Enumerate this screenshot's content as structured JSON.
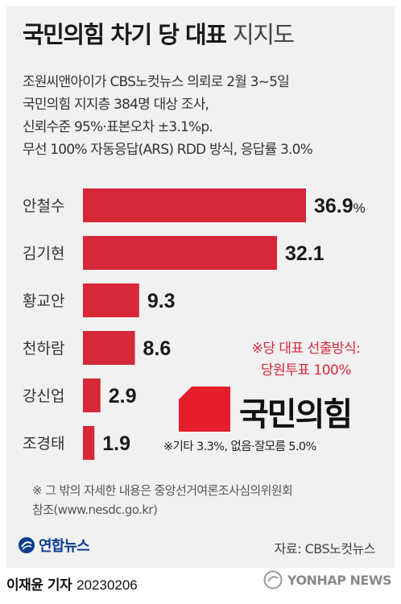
{
  "title": {
    "main": "국민의힘 차기 당 대표",
    "light": "지지도"
  },
  "description": [
    "조원씨앤아이가 CBS노컷뉴스 의뢰로 2월 3~5일",
    "국민의힘 지지층 384명 대상 조사,",
    "신뢰수준 95%·표본오차 ±3.1%p.",
    "무선 100% 자동응답(ARS) RDD 방식, 응답률 3.0%"
  ],
  "chart_data": {
    "type": "bar",
    "orientation": "horizontal",
    "categories": [
      "안철수",
      "김기현",
      "황교안",
      "천하람",
      "강신업",
      "조경태"
    ],
    "values": [
      36.9,
      32.1,
      9.3,
      8.6,
      2.9,
      1.9
    ],
    "value_labels": [
      "36.9",
      "32.1",
      "9.3",
      "8.6",
      "2.9",
      "1.9"
    ],
    "unit": "%",
    "bar_color": "#d62839"
  },
  "party_note": [
    "※당 대표 선출방식:",
    "당원투표 100%"
  ],
  "party_name": "국민의힘",
  "party_color": "#e61e2b",
  "other_note": "※기타 3.3%, 없음·잘모름 5.0%",
  "footnote": [
    "※ 그 밖의 자세한 내용은 중앙선거여론조사심의위원회",
    "참조(www.nesdc.go.kr)"
  ],
  "agency_logo": "연합뉴스",
  "source": "자료: CBS노컷뉴스",
  "byline": {
    "name": "이재윤 기자",
    "date": "20230206"
  },
  "watermark": "YONHAP NEWS"
}
